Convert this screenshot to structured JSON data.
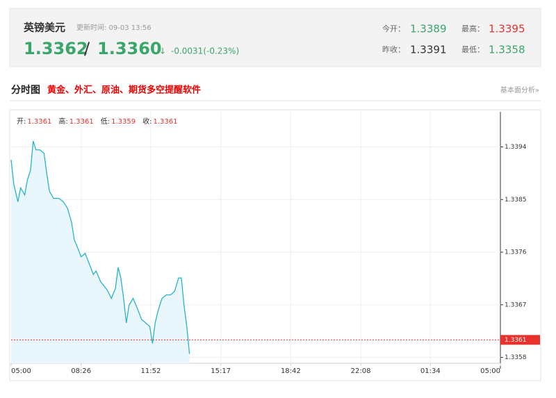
{
  "header": {
    "name": "英镑美元",
    "update": "更新时间: 09-03 13:56",
    "bid": "1.3362",
    "sep": "/",
    "ask": "1.3360",
    "arrow": "↓",
    "change": "-0.0031(-0.23%)",
    "open_label": "今开：",
    "open": "1.3389",
    "high_label": "最高：",
    "high": "1.3395",
    "prev_label": "昨收：",
    "prev": "1.3391",
    "low_label": "最低：",
    "low": "1.3358"
  },
  "section": {
    "title": "分时图",
    "ad": "黄金、外汇、原油、期货多空提醒软件",
    "link": "基本面分析»"
  },
  "chart_data": {
    "type": "area",
    "ohlc": [
      {
        "label": "开:",
        "value": 1.3361
      },
      {
        "label": "高:",
        "value": 1.3361
      },
      {
        "label": "低:",
        "value": 1.3359
      },
      {
        "label": "收:",
        "value": 1.3361
      }
    ],
    "x": [
      0,
      8,
      20,
      28,
      40,
      48,
      57,
      65,
      73,
      85,
      97,
      105,
      113,
      125,
      141,
      154,
      166,
      178,
      186,
      194,
      206,
      218,
      230,
      242,
      250,
      263,
      271,
      283,
      295,
      307,
      315,
      323,
      331,
      339,
      347,
      359,
      372,
      384,
      396,
      408,
      416,
      424,
      432,
      444,
      457,
      469,
      481,
      493,
      501,
      509,
      517,
      525
    ],
    "values": [
      1.33918,
      1.33876,
      1.33846,
      1.3387,
      1.33858,
      1.33884,
      1.339,
      1.3395,
      1.33935,
      1.33935,
      1.33929,
      1.33894,
      1.33864,
      1.33852,
      1.33852,
      1.33846,
      1.33835,
      1.33811,
      1.33781,
      1.3377,
      1.33752,
      1.33758,
      1.3374,
      1.33722,
      1.33728,
      1.3371,
      1.33704,
      1.33695,
      1.33681,
      1.33698,
      1.33734,
      1.33716,
      1.33681,
      1.33639,
      1.33669,
      1.33681,
      1.33663,
      1.33645,
      1.33639,
      1.33633,
      1.33604,
      1.33639,
      1.33659,
      1.33681,
      1.33687,
      1.33687,
      1.33693,
      1.33716,
      1.33716,
      1.33669,
      1.33633,
      1.33586
    ],
    "color": "#27b3c6",
    "fill": "#e9f6fb",
    "last": 1.3361,
    "last_color": "#e8312d",
    "xlim": [
      0,
      1440
    ],
    "xticks": [
      {
        "value": 0,
        "label": "05:00"
      },
      {
        "value": 206,
        "label": "08:26"
      },
      {
        "value": 411,
        "label": "11:52"
      },
      {
        "value": 617,
        "label": "15:17"
      },
      {
        "value": 823,
        "label": "18:42"
      },
      {
        "value": 1029,
        "label": "22:08"
      },
      {
        "value": 1234,
        "label": "01:34"
      },
      {
        "value": 1440,
        "label": "05:00"
      }
    ],
    "ylim": [
      1.3357,
      1.34
    ],
    "yticks": [
      1.3358,
      1.3367,
      1.3376,
      1.3385,
      1.3394
    ],
    "grid": true
  }
}
